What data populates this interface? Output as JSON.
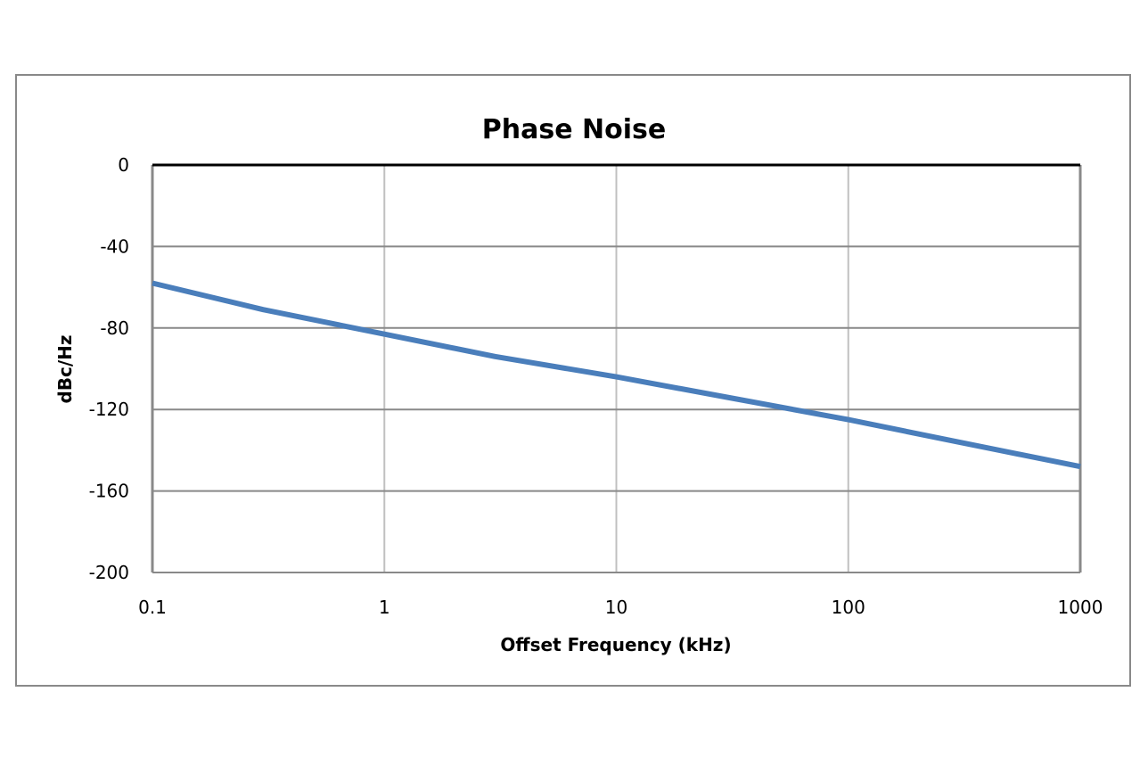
{
  "chart_data": {
    "type": "line",
    "title": "Phase Noise",
    "xlabel": "Offset Frequency (kHz)",
    "ylabel": "dBc/Hz",
    "xscale": "log",
    "xlim": [
      0.1,
      1000
    ],
    "ylim": [
      -200,
      0
    ],
    "xticks": [
      "0.1",
      "1",
      "10",
      "100",
      "1000"
    ],
    "yticks": [
      "0",
      "-40",
      "-80",
      "-120",
      "-160",
      "-200"
    ],
    "grid": true,
    "legend": "none",
    "series": [
      {
        "name": "Phase Noise",
        "color": "#4a7ebb",
        "x": [
          0.1,
          0.3,
          1,
          3,
          10,
          30,
          100,
          300,
          1000
        ],
        "values": [
          -58,
          -71,
          -83,
          -94,
          -104,
          -114,
          -125,
          -136,
          -148
        ]
      }
    ]
  }
}
